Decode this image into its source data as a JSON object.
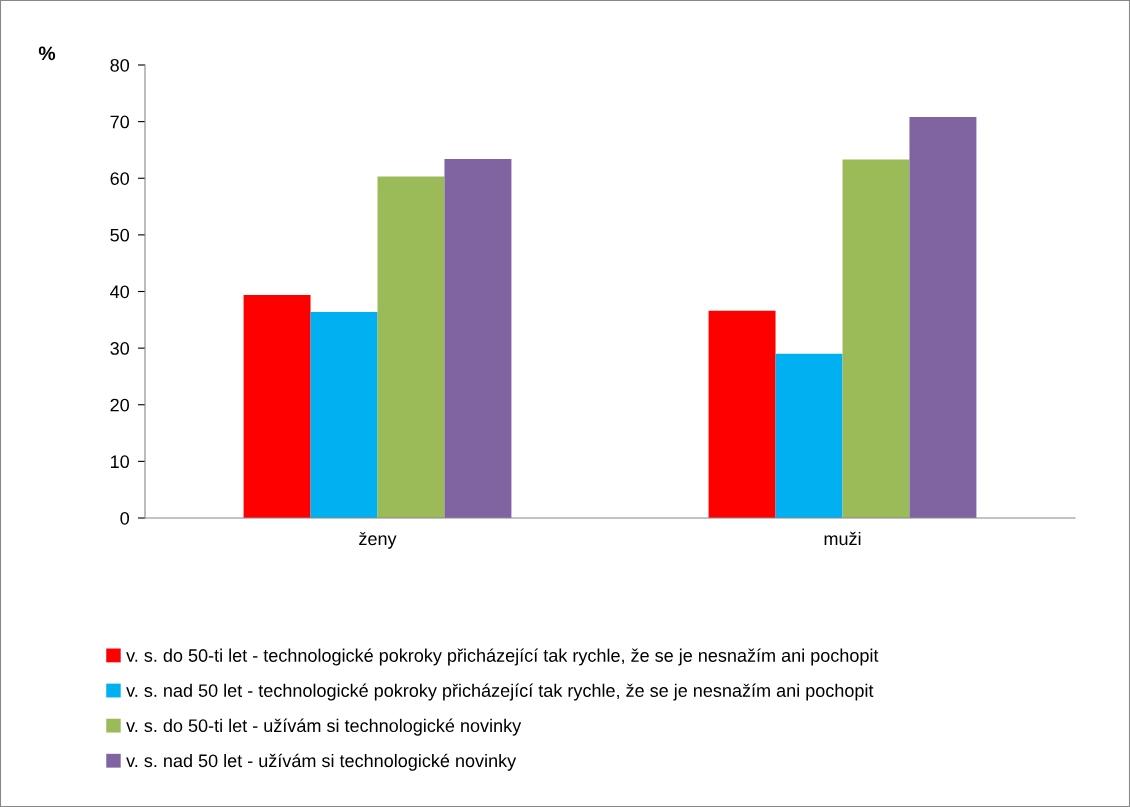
{
  "chart_data": {
    "type": "bar",
    "ylabel": "%",
    "categories": [
      "ženy",
      "muži"
    ],
    "series": [
      {
        "name": "v. s. do 50-ti let - technologické pokroky přicházející tak rychle, že se je nesnažím ani pochopit",
        "color": "#ff0000",
        "values": [
          39.4,
          36.6
        ]
      },
      {
        "name": "v. s. nad 50 let - technologické pokroky přicházející tak rychle, že se je nesnažím ani pochopit",
        "color": "#00b0f0",
        "values": [
          36.4,
          29.0
        ]
      },
      {
        "name": "v. s. do 50-ti let - užívám si technologické novinky",
        "color": "#9bbb59",
        "values": [
          60.3,
          63.3
        ]
      },
      {
        "name": "v. s. nad 50 let - užívám si technologické novinky",
        "color": "#8064a2",
        "values": [
          63.4,
          70.8
        ]
      }
    ],
    "ylim": [
      0,
      80
    ],
    "yticks": [
      0,
      10,
      20,
      30,
      40,
      50,
      60,
      70,
      80
    ],
    "grid": false,
    "legend": "bottom"
  }
}
